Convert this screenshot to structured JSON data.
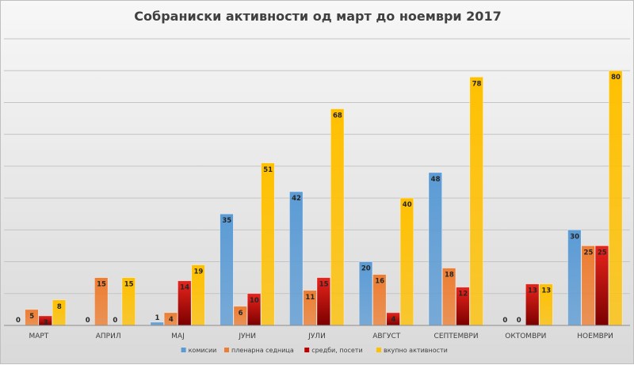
{
  "chart_data": {
    "type": "bar",
    "title": "Собраниски активности од март до ноември 2017",
    "categories": [
      "МАРТ",
      "АПРИЛ",
      "МАЈ",
      "ЈУНИ",
      "ЈУЛИ",
      "АВГУСТ",
      "СЕПТЕМВРИ",
      "ОКТОМВРИ",
      "НОЕМВРИ"
    ],
    "series": [
      {
        "name": "комисии",
        "color": "#5b9bd5",
        "values": [
          0,
          0,
          1,
          35,
          42,
          20,
          48,
          0,
          30
        ]
      },
      {
        "name": "пленарна седница",
        "color": "#ed7d31",
        "values": [
          5,
          15,
          4,
          6,
          11,
          16,
          18,
          0,
          25
        ]
      },
      {
        "name": "средби, посети",
        "color": "#c00000",
        "values": [
          3,
          0,
          14,
          10,
          15,
          4,
          12,
          13,
          25
        ]
      },
      {
        "name": "вкупно активности",
        "color": "#ffc000",
        "values": [
          8,
          15,
          19,
          51,
          68,
          40,
          78,
          13,
          80
        ]
      }
    ],
    "ylim": [
      0,
      90
    ],
    "gridlines": true,
    "y_tick_labels_shown": false,
    "data_labels": true,
    "legend_position": "bottom"
  }
}
